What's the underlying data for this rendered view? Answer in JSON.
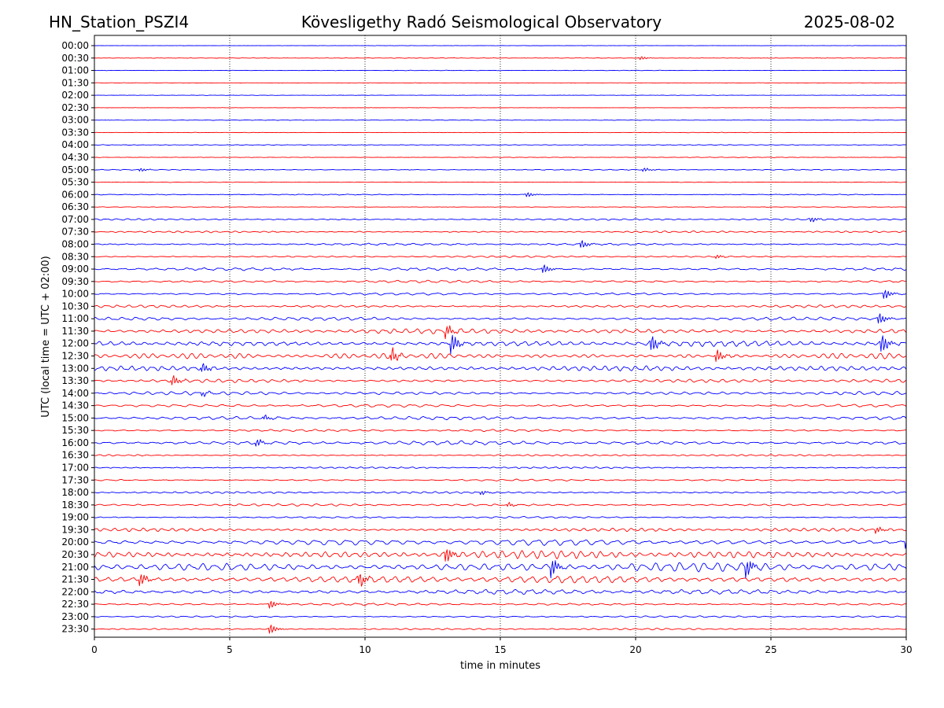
{
  "header": {
    "station": "HN_Station_PSZI4",
    "observatory": "Kövesligethy Radó Seismological Observatory",
    "date": "2025-08-02"
  },
  "chart_data": {
    "type": "line",
    "title": "Kövesligethy Radó Seismological Observatory",
    "xlabel": "time in minutes",
    "ylabel": "UTC (local time = UTC + 02:00)",
    "xlim": [
      0,
      30
    ],
    "x_ticks": [
      "0",
      "5",
      "10",
      "15",
      "20",
      "25",
      "30"
    ],
    "vertical_gridlines_at": [
      5,
      10,
      15,
      20,
      25
    ],
    "grid": "vertical dotted",
    "series_colors": [
      "#0000ff",
      "#ff0000"
    ],
    "color_pattern": "alternating blue (hh:00) / red (hh:30)",
    "trace_labels": [
      "00:00",
      "00:30",
      "01:00",
      "01:30",
      "02:00",
      "02:30",
      "03:00",
      "03:30",
      "04:00",
      "04:30",
      "05:00",
      "05:30",
      "06:00",
      "06:30",
      "07:00",
      "07:30",
      "08:00",
      "08:30",
      "09:00",
      "09:30",
      "10:00",
      "10:30",
      "11:00",
      "11:30",
      "12:00",
      "12:30",
      "13:00",
      "13:30",
      "14:00",
      "14:30",
      "15:00",
      "15:30",
      "16:00",
      "16:30",
      "17:00",
      "17:30",
      "18:00",
      "18:30",
      "19:00",
      "19:30",
      "20:00",
      "20:30",
      "21:00",
      "21:30",
      "22:00",
      "22:30",
      "23:00",
      "23:30"
    ],
    "trace_activity": [
      0.02,
      0.04,
      0.04,
      0.02,
      0.03,
      0.02,
      0.05,
      0.04,
      0.06,
      0.05,
      0.08,
      0.04,
      0.08,
      0.04,
      0.15,
      0.15,
      0.18,
      0.15,
      0.25,
      0.22,
      0.2,
      0.22,
      0.3,
      0.45,
      0.5,
      0.5,
      0.45,
      0.3,
      0.3,
      0.25,
      0.3,
      0.2,
      0.35,
      0.15,
      0.15,
      0.15,
      0.18,
      0.2,
      0.15,
      0.3,
      0.55,
      0.7,
      0.8,
      0.65,
      0.45,
      0.2,
      0.15,
      0.15
    ],
    "events": [
      {
        "trace": "00:30",
        "minute": 20.2,
        "amplitude": 0.35
      },
      {
        "trace": "05:00",
        "minute": 1.7,
        "amplitude": 0.35
      },
      {
        "trace": "05:00",
        "minute": 20.3,
        "amplitude": 0.4
      },
      {
        "trace": "06:00",
        "minute": 16.0,
        "amplitude": 0.5
      },
      {
        "trace": "07:00",
        "minute": 26.5,
        "amplitude": 0.5
      },
      {
        "trace": "08:00",
        "minute": 18.0,
        "amplitude": 0.8
      },
      {
        "trace": "08:30",
        "minute": 23.0,
        "amplitude": 0.35
      },
      {
        "trace": "09:00",
        "minute": 16.6,
        "amplitude": 0.9
      },
      {
        "trace": "10:00",
        "minute": 29.2,
        "amplitude": 1.0
      },
      {
        "trace": "11:00",
        "minute": 29.0,
        "amplitude": 1.1
      },
      {
        "trace": "11:30",
        "minute": 13.0,
        "amplitude": 1.2
      },
      {
        "trace": "12:00",
        "minute": 13.2,
        "amplitude": 2.0
      },
      {
        "trace": "12:00",
        "minute": 20.6,
        "amplitude": 1.6
      },
      {
        "trace": "12:00",
        "minute": 29.1,
        "amplitude": 1.9
      },
      {
        "trace": "12:30",
        "minute": 11.0,
        "amplitude": 1.4
      },
      {
        "trace": "12:30",
        "minute": 23.0,
        "amplitude": 1.3
      },
      {
        "trace": "13:00",
        "minute": 4.0,
        "amplitude": 0.9
      },
      {
        "trace": "13:30",
        "minute": 2.9,
        "amplitude": 1.0
      },
      {
        "trace": "14:00",
        "minute": 4.0,
        "amplitude": 0.5
      },
      {
        "trace": "15:00",
        "minute": 6.3,
        "amplitude": 0.5
      },
      {
        "trace": "16:00",
        "minute": 6.0,
        "amplitude": 0.7
      },
      {
        "trace": "18:00",
        "minute": 14.3,
        "amplitude": 0.4
      },
      {
        "trace": "18:30",
        "minute": 15.3,
        "amplitude": 0.4
      },
      {
        "trace": "19:30",
        "minute": 28.9,
        "amplitude": 0.6
      },
      {
        "trace": "20:00",
        "minute": 30.0,
        "amplitude": 1.3
      },
      {
        "trace": "20:30",
        "minute": 13.0,
        "amplitude": 1.5
      },
      {
        "trace": "21:00",
        "minute": 16.9,
        "amplitude": 1.8
      },
      {
        "trace": "21:00",
        "minute": 24.1,
        "amplitude": 1.8
      },
      {
        "trace": "21:30",
        "minute": 1.7,
        "amplitude": 1.3
      },
      {
        "trace": "21:30",
        "minute": 9.8,
        "amplitude": 1.4
      },
      {
        "trace": "22:30",
        "minute": 6.5,
        "amplitude": 0.8
      },
      {
        "trace": "23:30",
        "minute": 6.5,
        "amplitude": 1.0
      }
    ]
  }
}
